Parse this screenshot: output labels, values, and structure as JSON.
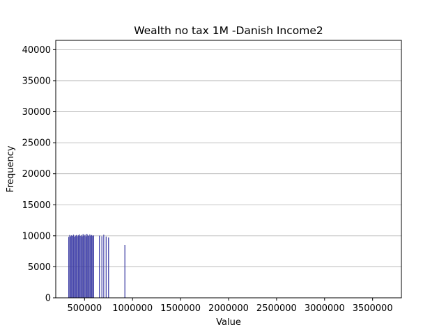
{
  "chart_data": {
    "type": "bar",
    "title": "Wealth no tax 1M -Danish Income2",
    "xlabel": "Value",
    "ylabel": "Frequency",
    "xlim": [
      200000,
      3800000
    ],
    "ylim": [
      0,
      41500
    ],
    "xticks": [
      500000,
      1000000,
      1500000,
      2000000,
      2500000,
      3000000,
      3500000
    ],
    "yticks": [
      0,
      5000,
      10000,
      15000,
      20000,
      25000,
      30000,
      35000,
      40000
    ],
    "grid": "horizontal",
    "bar_color": "#4444bb",
    "bin_width": 6000,
    "bars": [
      {
        "x": 335000,
        "y": 9800
      },
      {
        "x": 345000,
        "y": 10100
      },
      {
        "x": 355000,
        "y": 9900
      },
      {
        "x": 365000,
        "y": 10050
      },
      {
        "x": 375000,
        "y": 9950
      },
      {
        "x": 385000,
        "y": 10150
      },
      {
        "x": 395000,
        "y": 9850
      },
      {
        "x": 405000,
        "y": 10000
      },
      {
        "x": 415000,
        "y": 10100
      },
      {
        "x": 425000,
        "y": 9900
      },
      {
        "x": 435000,
        "y": 10050
      },
      {
        "x": 445000,
        "y": 10200
      },
      {
        "x": 455000,
        "y": 9950
      },
      {
        "x": 465000,
        "y": 10100
      },
      {
        "x": 475000,
        "y": 9900
      },
      {
        "x": 485000,
        "y": 10250
      },
      {
        "x": 495000,
        "y": 10000
      },
      {
        "x": 505000,
        "y": 10150
      },
      {
        "x": 515000,
        "y": 9900
      },
      {
        "x": 525000,
        "y": 10300
      },
      {
        "x": 535000,
        "y": 10050
      },
      {
        "x": 545000,
        "y": 9950
      },
      {
        "x": 555000,
        "y": 10200
      },
      {
        "x": 565000,
        "y": 10000
      },
      {
        "x": 575000,
        "y": 10100
      },
      {
        "x": 585000,
        "y": 9950
      },
      {
        "x": 595000,
        "y": 10050
      },
      {
        "x": 655000,
        "y": 10000
      },
      {
        "x": 680000,
        "y": 9900
      },
      {
        "x": 700000,
        "y": 10150
      },
      {
        "x": 725000,
        "y": 9850
      },
      {
        "x": 750000,
        "y": 9700
      },
      {
        "x": 920000,
        "y": 8500
      }
    ]
  }
}
